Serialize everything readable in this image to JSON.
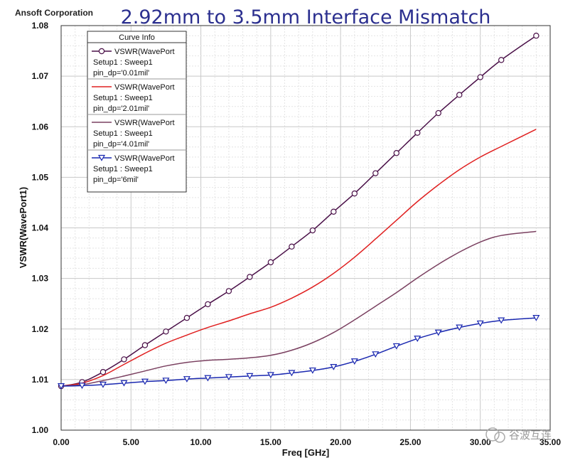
{
  "header": {
    "vendor": "Ansoft Corporation",
    "title": "2.92mm to 3.5mm Interface Mismatch"
  },
  "watermark": "谷波互连",
  "chart_data": {
    "type": "line",
    "title": "2.92mm to 3.5mm Interface Mismatch",
    "xlabel": "Freq [GHz]",
    "ylabel": "VSWR(WavePort1)",
    "xlim": [
      0,
      35
    ],
    "ylim": [
      1.0,
      1.08
    ],
    "grid": true,
    "x_ticks": [
      "0.00",
      "5.00",
      "10.00",
      "15.00",
      "20.00",
      "25.00",
      "30.00",
      "35.00"
    ],
    "y_ticks": [
      "1.00",
      "1.01",
      "1.02",
      "1.03",
      "1.04",
      "1.05",
      "1.06",
      "1.07",
      "1.08"
    ],
    "legend": {
      "title": "Curve Info",
      "placement": "top-left",
      "entries": [
        {
          "line1": "VSWR(WavePort",
          "line2": "Setup1 : Sweep1",
          "line3": "pin_dp='0.01mil'",
          "color": "#4a1048",
          "marker": "circle"
        },
        {
          "line1": "VSWR(WavePort",
          "line2": "Setup1 : Sweep1",
          "line3": "pin_dp='2.01mil'",
          "color": "#e02020",
          "marker": "none"
        },
        {
          "line1": "VSWR(WavePort",
          "line2": "Setup1 : Sweep1",
          "line3": "pin_dp='4.01mil'",
          "color": "#7a4060",
          "marker": "none"
        },
        {
          "line1": "VSWR(WavePort",
          "line2": "Setup1 : Sweep1",
          "line3": "pin_dp='6mil'",
          "color": "#1a28b0",
          "marker": "triangle"
        }
      ]
    },
    "x": [
      0,
      1.5,
      3,
      4.5,
      6,
      7.5,
      9,
      10.5,
      12,
      13.5,
      15,
      16.5,
      18,
      19.5,
      21,
      22.5,
      24,
      25.5,
      27,
      28.5,
      30,
      31.5,
      34
    ],
    "series": [
      {
        "name": "pin_dp='0.01mil'",
        "color": "#4a1048",
        "marker": "circle",
        "values": [
          1.0087,
          1.0095,
          1.0115,
          1.014,
          1.0168,
          1.0195,
          1.0222,
          1.0249,
          1.0275,
          1.0303,
          1.0332,
          1.0363,
          1.0395,
          1.0432,
          1.0468,
          1.0508,
          1.0548,
          1.0588,
          1.0627,
          1.0663,
          1.0698,
          1.0732,
          1.078
        ]
      },
      {
        "name": "pin_dp='2.01mil'",
        "color": "#e02020",
        "marker": "none",
        "values": [
          1.0087,
          1.0093,
          1.0108,
          1.013,
          1.0152,
          1.0172,
          1.0188,
          1.0203,
          1.0216,
          1.023,
          1.0243,
          1.0261,
          1.0283,
          1.031,
          1.0342,
          1.0378,
          1.0415,
          1.0452,
          1.0485,
          1.0515,
          1.054,
          1.0561,
          1.0595
        ]
      },
      {
        "name": "pin_dp='4.01mil'",
        "color": "#7a4060",
        "marker": "none",
        "values": [
          1.0087,
          1.009,
          1.0098,
          1.0107,
          1.0117,
          1.0127,
          1.0134,
          1.0138,
          1.014,
          1.0143,
          1.0148,
          1.0158,
          1.0173,
          1.0193,
          1.0218,
          1.0245,
          1.0272,
          1.0301,
          1.0328,
          1.0352,
          1.0372,
          1.0385,
          1.0393
        ]
      },
      {
        "name": "pin_dp='6mil'",
        "color": "#1a28b0",
        "marker": "triangle",
        "values": [
          1.0087,
          1.0088,
          1.009,
          1.0093,
          1.0096,
          1.0098,
          1.0101,
          1.0103,
          1.0105,
          1.0107,
          1.0109,
          1.0113,
          1.0118,
          1.0125,
          1.0136,
          1.015,
          1.0166,
          1.0181,
          1.0193,
          1.0203,
          1.0211,
          1.0217,
          1.0222
        ]
      }
    ]
  }
}
